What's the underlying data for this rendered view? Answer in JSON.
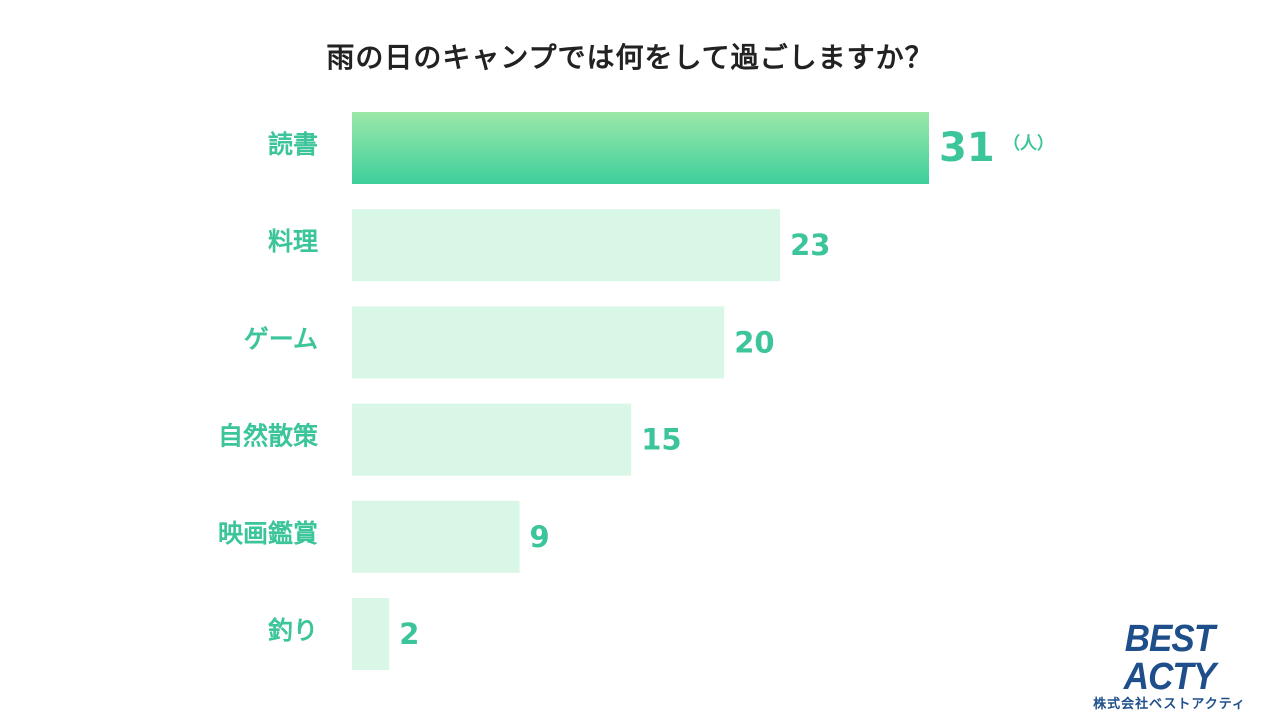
{
  "chart_data": {
    "type": "bar",
    "orientation": "horizontal",
    "title": "雨の日のキャンプでは何をして過ごしますか？",
    "categories": [
      "読書",
      "料理",
      "ゲーム",
      "自然散策",
      "映画鑑賞",
      "釣り"
    ],
    "values": [
      31,
      23,
      20,
      15,
      9,
      2
    ],
    "unit": "（人）",
    "grid": false,
    "legend": false
  },
  "colors": {
    "highlight_top": "#9be8a8",
    "highlight_bottom": "#3ecf9c",
    "bar": "#d8f7e6",
    "label": "#3cc49a",
    "title": "#222222",
    "logo": "#1e4f8a"
  },
  "logo": {
    "main": "BEST ACTY",
    "sub": "株式会社ベストアクティ"
  }
}
